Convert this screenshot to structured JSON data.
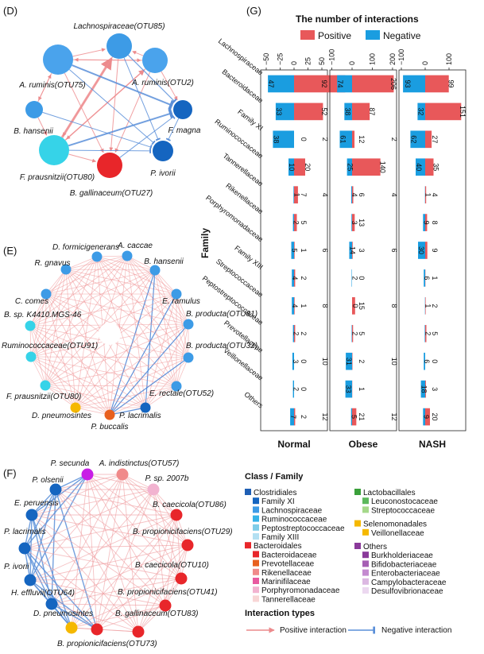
{
  "panels": {
    "d": "(D)",
    "e": "(E)",
    "f": "(F)",
    "g": "(G)"
  },
  "network_d": {
    "nodes": [
      {
        "label": "Lachnospiraceae(OTU85)",
        "color": "#3d9be6"
      },
      {
        "label": "A. ruminis(OTU75)",
        "color": "#4aa3ec"
      },
      {
        "label": "A. ruminis(OTU2)",
        "color": "#4aa3ec"
      },
      {
        "label": "B. hansenii",
        "color": "#3d9be6"
      },
      {
        "label": "F. magna",
        "color": "#1565c0"
      },
      {
        "label": "F. prausnitzii(OTU80)",
        "color": "#36d3e8"
      },
      {
        "label": "P. ivorii",
        "color": "#1565c0"
      },
      {
        "label": "B. gallinaceum(OTU27)",
        "color": "#e8262a"
      }
    ]
  },
  "network_e": {
    "nodes": [
      {
        "label": "D. formicigenerans",
        "color": "#3d9be6"
      },
      {
        "label": "A. caccae",
        "color": "#3d9be6"
      },
      {
        "label": "R. gnavus",
        "color": "#3d9be6"
      },
      {
        "label": "B. hansenii",
        "color": "#3d9be6"
      },
      {
        "label": "C. comes",
        "color": "#3d9be6"
      },
      {
        "label": "E. ramulus",
        "color": "#3d9be6"
      },
      {
        "label": "B. sp. K4410.MGS-46",
        "color": "#36d3e8"
      },
      {
        "label": "B. producta(OTU81)",
        "color": "#3d9be6"
      },
      {
        "label": "Ruminococcaceae(OTU91)",
        "color": "#36d3e8"
      },
      {
        "label": "B. producta(OTU32)",
        "color": "#3d9be6"
      },
      {
        "label": "F. prausnitzii(OTU80)",
        "color": "#36d3e8"
      },
      {
        "label": "E. rectale(OTU52)",
        "color": "#3d9be6"
      },
      {
        "label": "D. pneumosintes",
        "color": "#f5b800"
      },
      {
        "label": "P. lacrimalis",
        "color": "#1565c0"
      },
      {
        "label": "P. buccalis",
        "color": "#e8601e"
      }
    ]
  },
  "network_f": {
    "nodes": [
      {
        "label": "P. secunda",
        "color": "#c81ee6"
      },
      {
        "label": "A. indistinctus(OTU57)",
        "color": "#f08a8a"
      },
      {
        "label": "P. olsenii",
        "color": "#1565c0"
      },
      {
        "label": "P. sp. 2007b",
        "color": "#f2b3d0"
      },
      {
        "label": "E. peruensis",
        "color": "#1565c0"
      },
      {
        "label": "B. caecicola(OTU86)",
        "color": "#e8262a"
      },
      {
        "label": "P. lacrimalis",
        "color": "#1565c0"
      },
      {
        "label": "B. propionicifaciens(OTU29)",
        "color": "#e8262a"
      },
      {
        "label": "P. ivorii",
        "color": "#1565c0"
      },
      {
        "label": "B. caecicola(OTU10)",
        "color": "#e8262a"
      },
      {
        "label": "H. effluvii(OTU64)",
        "color": "#1565c0"
      },
      {
        "label": "B. propionicifaciens(OTU41)",
        "color": "#e8262a"
      },
      {
        "label": "D. pneumosintes",
        "color": "#f5b800"
      },
      {
        "label": "B. gallinaceum(OTU83)",
        "color": "#e8262a"
      },
      {
        "label": "B. propionicifaciens(OTU73)",
        "color": "#e8262a"
      }
    ]
  },
  "legend": {
    "title": "Class / Family",
    "col1": [
      {
        "label": "Clostridiales",
        "color": "#1f5fb4",
        "head": true
      },
      {
        "label": "Family XI",
        "color": "#1565c0",
        "head": false
      },
      {
        "label": "Lachnospiraceae",
        "color": "#3d9be6",
        "head": false
      },
      {
        "label": "Ruminococcaceae",
        "color": "#36b3e8",
        "head": false
      },
      {
        "label": "Peptostreptococcaceae",
        "color": "#7fcde8",
        "head": false
      },
      {
        "label": "Family XIII",
        "color": "#b3e0f2",
        "head": false
      },
      {
        "label": "Bacteroidales",
        "color": "#e8262a",
        "head": true
      },
      {
        "label": "Bacteroidaceae",
        "color": "#e8262a",
        "head": false
      },
      {
        "label": "Prevotellaceae",
        "color": "#e8601e",
        "head": false
      },
      {
        "label": "Rikenellaceae",
        "color": "#f08a8a",
        "head": false
      },
      {
        "label": "Marinifilaceae",
        "color": "#e85aa0",
        "head": false
      },
      {
        "label": "Porphyromonadaceae",
        "color": "#f2b3d0",
        "head": false
      },
      {
        "label": "Tannerellaceae",
        "color": "#f8d5d5",
        "head": false
      }
    ],
    "col2": [
      {
        "label": "Lactobacillales",
        "color": "#3aa03a",
        "head": true
      },
      {
        "label": "Leuconostocaceae",
        "color": "#5cb85c",
        "head": false
      },
      {
        "label": "Streptococcaceae",
        "color": "#a5d88a",
        "head": false
      },
      {
        "label": "Selenomonadales",
        "color": "#f5b800",
        "head": true,
        "gap": true
      },
      {
        "label": "Veillonellaceae",
        "color": "#f5b800",
        "head": false
      },
      {
        "label": "Others",
        "color": "#8a3a9a",
        "head": true,
        "gap": true
      },
      {
        "label": "Burkholderiaceae",
        "color": "#8a3a9a",
        "head": false
      },
      {
        "label": "Bifidobacteriaceae",
        "color": "#a65fb4",
        "head": false
      },
      {
        "label": "Enterobacteriaceae",
        "color": "#c48ad0",
        "head": false
      },
      {
        "label": "Campylobacteraceae",
        "color": "#dcb8e2",
        "head": false
      },
      {
        "label": "Desulfovibrionaceae",
        "color": "#ecd8f0",
        "head": false
      }
    ],
    "interaction_title": "Interaction types",
    "positive_label": "Positive interaction",
    "negative_label": "Negative interaction"
  },
  "chart_data": {
    "type": "bar",
    "title": "The number of interactions",
    "ylabel": "Family",
    "categories": [
      "Lachnospiraceae",
      "Bacteroidaceae",
      "Family XI",
      "Ruminococcaceae",
      "Tannerellaceae",
      "Rikenellaceae",
      "Porphyromonadaceae",
      "Family XIII",
      "Streptococcaceae",
      "Peptostreptococcaceae",
      "Prevotellaceae",
      "Veillonellaceae",
      "Others"
    ],
    "series_colors": {
      "Positive": "#e8585a",
      "Negative": "#1a9de0"
    },
    "legend_labels": [
      "Positive",
      "Negative"
    ],
    "groups": [
      {
        "name": "Normal",
        "ticks": [
          "−50",
          "−25",
          "0",
          "25",
          "50"
        ],
        "tick_values": [
          -50,
          -25,
          0,
          25,
          50
        ],
        "range": [
          -60,
          60
        ],
        "negative": [
          47,
          33,
          38,
          10,
          1,
          2,
          5,
          4,
          4,
          2,
          3,
          2,
          7
        ],
        "positive": [
          92,
          52,
          0,
          20,
          7,
          5,
          1,
          2,
          1,
          2,
          0,
          0,
          2
        ],
        "total": [
          null,
          null,
          2,
          null,
          4,
          null,
          6,
          null,
          8,
          null,
          10,
          null,
          12
        ]
      },
      {
        "name": "Obese",
        "ticks": [
          "−100",
          "0",
          "100",
          "200"
        ],
        "tick_values": [
          -100,
          0,
          100,
          200
        ],
        "range": [
          -110,
          220
        ],
        "negative": [
          74,
          38,
          61,
          25,
          4,
          3,
          14,
          2,
          0,
          2,
          31,
          33,
          5
        ],
        "positive": [
          206,
          87,
          12,
          140,
          6,
          13,
          3,
          0,
          15,
          5,
          2,
          1,
          21
        ],
        "total": [
          null,
          null,
          2,
          null,
          4,
          null,
          6,
          null,
          8,
          null,
          10,
          null,
          12
        ]
      },
      {
        "name": "NASH",
        "ticks": [
          "−100",
          "0",
          "100"
        ],
        "tick_values": [
          -100,
          0,
          100
        ],
        "range": [
          -110,
          170
        ],
        "negative": [
          93,
          32,
          62,
          40,
          1,
          9,
          30,
          6,
          1,
          2,
          6,
          18,
          9
        ],
        "positive": [
          99,
          151,
          27,
          35,
          4,
          8,
          9,
          1,
          2,
          5,
          0,
          3,
          20
        ],
        "total": [
          null,
          null,
          null,
          null,
          null,
          null,
          null,
          null,
          null,
          null,
          null,
          null,
          null
        ]
      }
    ]
  }
}
